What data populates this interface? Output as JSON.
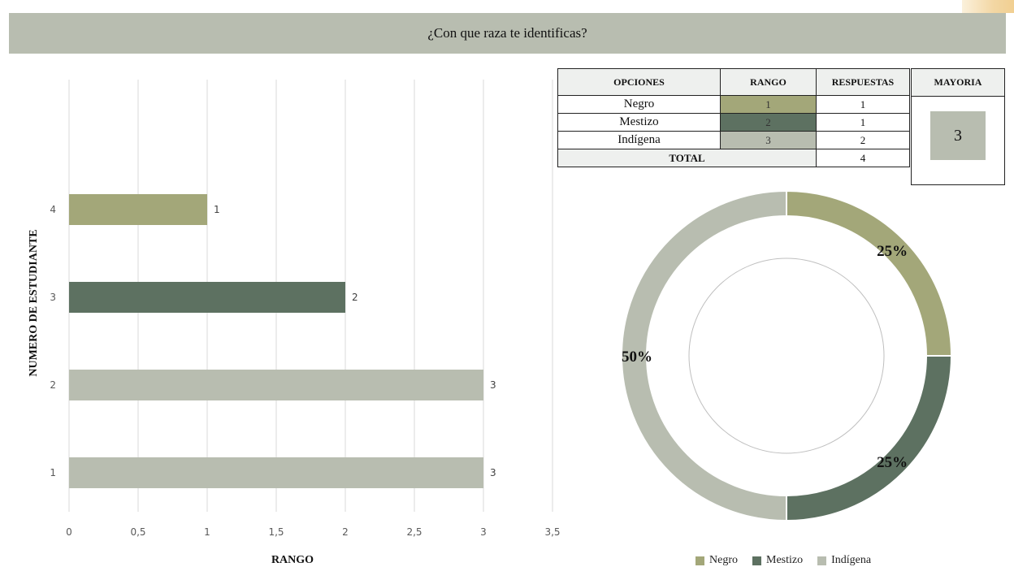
{
  "page_title": "¿Con que raza te identificas?",
  "chart_data": [
    {
      "type": "bar",
      "orientation": "horizontal",
      "categories": [
        "1",
        "2",
        "3",
        "4"
      ],
      "values": [
        3,
        3,
        2,
        1
      ],
      "bar_colors": [
        "#b8bdb0",
        "#b8bdb0",
        "#5d7161",
        "#a3a779"
      ],
      "xlabel": "RANGO",
      "ylabel": "NUMERO DE ESTUDIANTE",
      "xlim": [
        0,
        3.5
      ],
      "xticks": [
        "0",
        "0,5",
        "1",
        "1,5",
        "2",
        "2,5",
        "3",
        "3,5"
      ],
      "data_labels": [
        "3",
        "3",
        "2",
        "1"
      ],
      "grid": "vertical"
    },
    {
      "type": "pie",
      "variant": "donut",
      "labels": [
        "Negro",
        "Mestizo",
        "Indígena"
      ],
      "values": [
        25,
        25,
        50
      ],
      "data_labels": [
        "25%",
        "25%",
        "50%"
      ],
      "colors": [
        "#a3a779",
        "#5d7161",
        "#b8bdb0"
      ],
      "legend": "bottom"
    }
  ],
  "table": {
    "headers": [
      "OPCIONES",
      "RANGO",
      "RESPUESTAS",
      "MAYORIA"
    ],
    "rows": [
      {
        "opcion": "Negro",
        "rango": "1",
        "respuestas": "1",
        "color": "#a3a779"
      },
      {
        "opcion": "Mestizo",
        "rango": "2",
        "respuestas": "1",
        "color": "#5d7161"
      },
      {
        "opcion": "Indígena",
        "rango": "3",
        "respuestas": "2",
        "color": "#b8bdb0"
      }
    ],
    "total_label": "TOTAL",
    "total_value": "4",
    "mayoria_value": "3"
  },
  "colors": {
    "title_bg": "#b8bdb0",
    "negro": "#a3a779",
    "mestizo": "#5d7161",
    "indigena": "#b8bdb0"
  }
}
